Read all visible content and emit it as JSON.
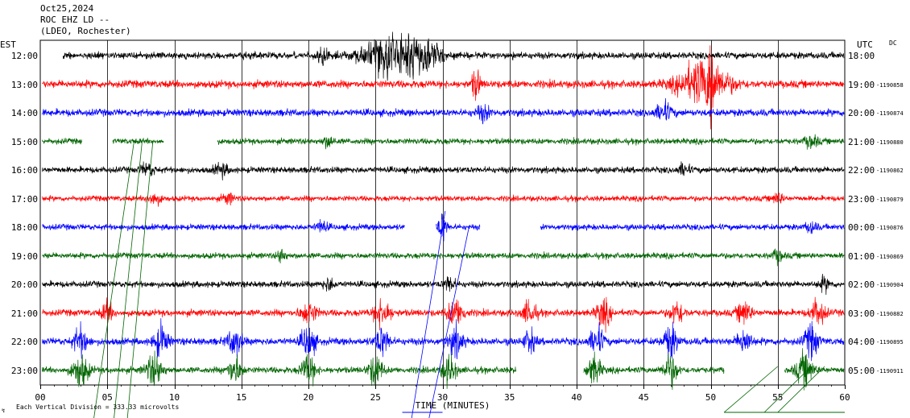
{
  "header": {
    "line1": "Oct25,2024",
    "line2": "ROC EHZ LD --",
    "line3": "(LDEO, Rochester)"
  },
  "chart_data": {
    "type": "line",
    "title": "ROC EHZ LD --",
    "left_axis_label": "EST",
    "right_axis_label": "UTC",
    "dc_label": "DC",
    "xlabel": "TIME (MINUTES)",
    "xlim": [
      0,
      60
    ],
    "x_ticks": [
      "00",
      "05",
      "10",
      "15",
      "20",
      "25",
      "30",
      "35",
      "40",
      "45",
      "50",
      "55",
      "60"
    ],
    "scale_note": "Each Vertical Division = 333.33 microvolts",
    "grid": true,
    "rows": [
      {
        "est": "12:00",
        "utc": "18:00",
        "dc": "",
        "color": "#000000"
      },
      {
        "est": "13:00",
        "utc": "19:00",
        "dc": "-1190858",
        "color": "#ff0000"
      },
      {
        "est": "14:00",
        "utc": "20:00",
        "dc": "-1190874",
        "color": "#0000ff"
      },
      {
        "est": "15:00",
        "utc": "21:00",
        "dc": "-1190880",
        "color": "#006400"
      },
      {
        "est": "16:00",
        "utc": "22:00",
        "dc": "-1190862",
        "color": "#000000"
      },
      {
        "est": "17:00",
        "utc": "23:00",
        "dc": "-1190879",
        "color": "#ff0000"
      },
      {
        "est": "18:00",
        "utc": "00:00",
        "dc": "-1190876",
        "color": "#0000ff"
      },
      {
        "est": "19:00",
        "utc": "01:00",
        "dc": "-1190869",
        "color": "#006400"
      },
      {
        "est": "20:00",
        "utc": "02:00",
        "dc": "-1190904",
        "color": "#000000"
      },
      {
        "est": "21:00",
        "utc": "03:00",
        "dc": "-1190882",
        "color": "#ff0000"
      },
      {
        "est": "22:00",
        "utc": "04:00",
        "dc": "-1190895",
        "color": "#0000ff"
      },
      {
        "est": "23:00",
        "utc": "05:00",
        "dc": "-1190911",
        "color": "#006400"
      }
    ]
  }
}
